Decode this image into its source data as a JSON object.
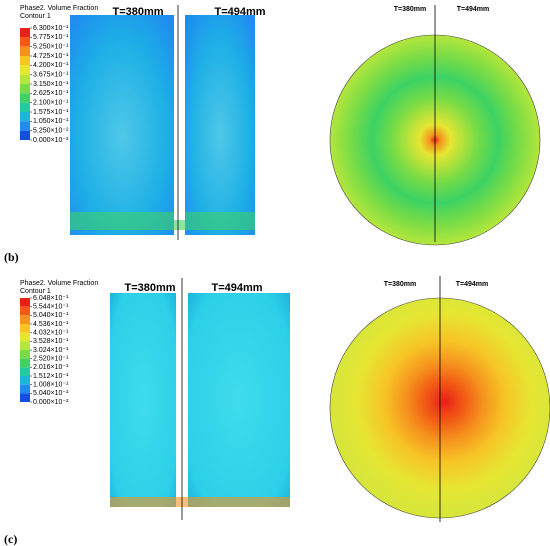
{
  "panels": [
    {
      "label": "(b)",
      "legend_title": "Phase2. Volume Fraction",
      "legend_subtitle": "Contour 1",
      "colorbar": {
        "ticks": [
          {
            "value": 0.63,
            "label": "6.300×10⁻¹"
          },
          {
            "value": 0.5775,
            "label": "5.775×10⁻¹"
          },
          {
            "value": 0.525,
            "label": "5.250×10⁻¹"
          },
          {
            "value": 0.4725,
            "label": "4.725×10⁻¹"
          },
          {
            "value": 0.42,
            "label": "4.200×10⁻¹"
          },
          {
            "value": 0.3675,
            "label": "3.675×10⁻¹"
          },
          {
            "value": 0.315,
            "label": "3.150×10⁻¹"
          },
          {
            "value": 0.2625,
            "label": "2.625×10⁻¹"
          },
          {
            "value": 0.21,
            "label": "2.100×10⁻¹"
          },
          {
            "value": 0.1575,
            "label": "1.575×10⁻¹"
          },
          {
            "value": 0.105,
            "label": "1.050×10⁻¹"
          },
          {
            "value": 0.0525,
            "label": "5.250×10⁻²"
          },
          {
            "value": 0,
            "label": "0.000×10⁻²"
          }
        ],
        "colors": [
          "#e8201a",
          "#f25a14",
          "#f5921e",
          "#f7c426",
          "#e6e632",
          "#b4e63c",
          "#78dc46",
          "#3cd264",
          "#28c8a0",
          "#1eb4dc",
          "#1e8cf0",
          "#1450dc"
        ]
      },
      "side_labels": [
        "T=380mm",
        "T=494mm"
      ],
      "top_labels": [
        "T=380mm",
        "T=494mm"
      ]
    },
    {
      "label": "(c)",
      "legend_title": "Phase2. Volume Fraction",
      "legend_subtitle": "Contour 1",
      "colorbar": {
        "ticks": [
          {
            "value": 0.6048,
            "label": "6.048×10⁻¹"
          },
          {
            "value": 0.5544,
            "label": "5.544×10⁻¹"
          },
          {
            "value": 0.504,
            "label": "5.040×10⁻¹"
          },
          {
            "value": 0.4536,
            "label": "4.536×10⁻¹"
          },
          {
            "value": 0.4032,
            "label": "4.032×10⁻¹"
          },
          {
            "value": 0.3528,
            "label": "3.528×10⁻¹"
          },
          {
            "value": 0.3024,
            "label": "3.024×10⁻¹"
          },
          {
            "value": 0.252,
            "label": "2.520×10⁻¹"
          },
          {
            "value": 0.2016,
            "label": "2.016×10⁻¹"
          },
          {
            "value": 0.1512,
            "label": "1.512×10⁻¹"
          },
          {
            "value": 0.1008,
            "label": "1.008×10⁻¹"
          },
          {
            "value": 0.0504,
            "label": "5.040×10⁻²"
          },
          {
            "value": 0,
            "label": "0.000×10⁻²"
          }
        ],
        "colors": [
          "#e8201a",
          "#f25a14",
          "#f5921e",
          "#f7c426",
          "#e6e632",
          "#b4e63c",
          "#78dc46",
          "#3cd264",
          "#28c8a0",
          "#1eb4dc",
          "#1e8cf0",
          "#1450dc"
        ]
      },
      "side_labels": [
        "T=380mm",
        "T=494mm"
      ],
      "top_labels": [
        "T=380mm",
        "T=494mm"
      ]
    }
  ]
}
